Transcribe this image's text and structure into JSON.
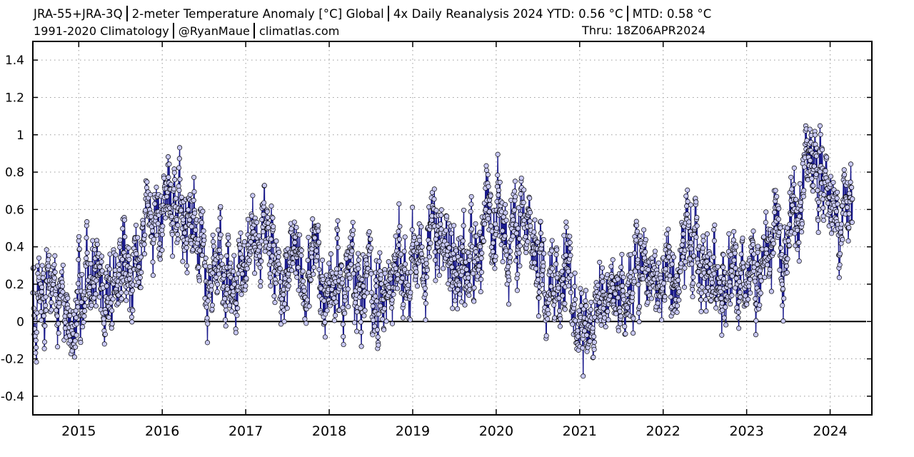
{
  "header": {
    "line1_parts": [
      "JRA-55+JRA-3Q",
      "2-meter Temperature Anomaly [°C] Global",
      "4x Daily Reanalysis 2024 YTD: 0.56 °C",
      "MTD: 0.58 °C"
    ],
    "line2_parts": [
      "1991-2020 Climatology",
      "@RyanMaue",
      "climatlas.com"
    ],
    "thru": "Thru: 18Z06APR2024"
  },
  "chart_data": {
    "type": "line",
    "ylim": [
      -0.5,
      1.5
    ],
    "xlim": [
      2014.45,
      2024.5
    ],
    "y_ticks": [
      -0.4,
      -0.2,
      0,
      0.2,
      0.4,
      0.6,
      0.8,
      1,
      1.2,
      1.4
    ],
    "y_tick_labels": [
      "-0.4",
      "-0.2",
      "0",
      "0.2",
      "0.4",
      "0.6",
      "0.8",
      "1",
      "1.2",
      "1.4"
    ],
    "x_ticks": [
      2015,
      2016,
      2017,
      2018,
      2019,
      2020,
      2021,
      2022,
      2023,
      2024
    ],
    "x_tick_labels": [
      "2015",
      "2016",
      "2017",
      "2018",
      "2019",
      "2020",
      "2021",
      "2022",
      "2023",
      "2024"
    ],
    "grid": true,
    "zero_line": true,
    "line_color": "#1a1a8c",
    "marker_fill": "#c8c8f4",
    "marker_stroke": "#000000",
    "series": [
      {
        "values": [
          [
            2014.5,
            0.1
          ],
          [
            2014.58,
            0.15
          ],
          [
            2014.67,
            0.2
          ],
          [
            2014.75,
            0.12
          ],
          [
            2014.83,
            0.05
          ],
          [
            2014.92,
            -0.05
          ],
          [
            2015.0,
            0.1
          ],
          [
            2015.08,
            0.15
          ],
          [
            2015.17,
            0.2
          ],
          [
            2015.25,
            0.17
          ],
          [
            2015.33,
            0.12
          ],
          [
            2015.42,
            0.18
          ],
          [
            2015.5,
            0.22
          ],
          [
            2015.58,
            0.25
          ],
          [
            2015.67,
            0.32
          ],
          [
            2015.75,
            0.4
          ],
          [
            2015.83,
            0.45
          ],
          [
            2015.92,
            0.52
          ],
          [
            2016.0,
            0.6
          ],
          [
            2016.08,
            0.68
          ],
          [
            2016.17,
            0.72
          ],
          [
            2016.25,
            0.6
          ],
          [
            2016.33,
            0.5
          ],
          [
            2016.42,
            0.4
          ],
          [
            2016.5,
            0.3
          ],
          [
            2016.58,
            0.32
          ],
          [
            2016.67,
            0.35
          ],
          [
            2016.75,
            0.3
          ],
          [
            2016.83,
            0.28
          ],
          [
            2016.92,
            0.3
          ],
          [
            2017.0,
            0.35
          ],
          [
            2017.08,
            0.42
          ],
          [
            2017.17,
            0.45
          ],
          [
            2017.25,
            0.4
          ],
          [
            2017.33,
            0.35
          ],
          [
            2017.42,
            0.3
          ],
          [
            2017.5,
            0.25
          ],
          [
            2017.58,
            0.22
          ],
          [
            2017.67,
            0.25
          ],
          [
            2017.75,
            0.3
          ],
          [
            2017.83,
            0.25
          ],
          [
            2017.92,
            0.2
          ],
          [
            2018.0,
            0.25
          ],
          [
            2018.08,
            0.2
          ],
          [
            2018.17,
            0.22
          ],
          [
            2018.25,
            0.25
          ],
          [
            2018.33,
            0.2
          ],
          [
            2018.42,
            0.18
          ],
          [
            2018.5,
            0.2
          ],
          [
            2018.58,
            0.18
          ],
          [
            2018.67,
            0.22
          ],
          [
            2018.75,
            0.25
          ],
          [
            2018.83,
            0.3
          ],
          [
            2018.92,
            0.25
          ],
          [
            2019.0,
            0.25
          ],
          [
            2019.08,
            0.35
          ],
          [
            2019.17,
            0.4
          ],
          [
            2019.25,
            0.38
          ],
          [
            2019.33,
            0.4
          ],
          [
            2019.42,
            0.35
          ],
          [
            2019.5,
            0.32
          ],
          [
            2019.58,
            0.3
          ],
          [
            2019.67,
            0.35
          ],
          [
            2019.75,
            0.42
          ],
          [
            2019.83,
            0.45
          ],
          [
            2019.92,
            0.42
          ],
          [
            2020.0,
            0.45
          ],
          [
            2020.08,
            0.5
          ],
          [
            2020.17,
            0.55
          ],
          [
            2020.25,
            0.48
          ],
          [
            2020.33,
            0.42
          ],
          [
            2020.42,
            0.4
          ],
          [
            2020.5,
            0.38
          ],
          [
            2020.58,
            0.32
          ],
          [
            2020.67,
            0.3
          ],
          [
            2020.75,
            0.28
          ],
          [
            2020.83,
            0.25
          ],
          [
            2020.92,
            0.2
          ],
          [
            2021.0,
            0.1
          ],
          [
            2021.08,
            0.05
          ],
          [
            2021.17,
            0.08
          ],
          [
            2021.25,
            0.15
          ],
          [
            2021.33,
            0.18
          ],
          [
            2021.42,
            0.2
          ],
          [
            2021.5,
            0.22
          ],
          [
            2021.58,
            0.25
          ],
          [
            2021.67,
            0.3
          ],
          [
            2021.75,
            0.28
          ],
          [
            2021.83,
            0.25
          ],
          [
            2021.92,
            0.2
          ],
          [
            2022.0,
            0.15
          ],
          [
            2022.08,
            0.1
          ],
          [
            2022.17,
            0.2
          ],
          [
            2022.25,
            0.3
          ],
          [
            2022.33,
            0.35
          ],
          [
            2022.42,
            0.28
          ],
          [
            2022.5,
            0.25
          ],
          [
            2022.58,
            0.28
          ],
          [
            2022.67,
            0.3
          ],
          [
            2022.75,
            0.25
          ],
          [
            2022.83,
            0.2
          ],
          [
            2022.92,
            0.05
          ],
          [
            2023.0,
            0.1
          ],
          [
            2023.08,
            0.2
          ],
          [
            2023.17,
            0.28
          ],
          [
            2023.25,
            0.35
          ],
          [
            2023.33,
            0.4
          ],
          [
            2023.42,
            0.42
          ],
          [
            2023.5,
            0.5
          ],
          [
            2023.58,
            0.62
          ],
          [
            2023.67,
            0.75
          ],
          [
            2023.75,
            0.85
          ],
          [
            2023.83,
            0.8
          ],
          [
            2023.92,
            0.75
          ],
          [
            2024.0,
            0.7
          ],
          [
            2024.08,
            0.55
          ],
          [
            2024.17,
            0.6
          ],
          [
            2024.25,
            0.5
          ]
        ]
      }
    ]
  }
}
